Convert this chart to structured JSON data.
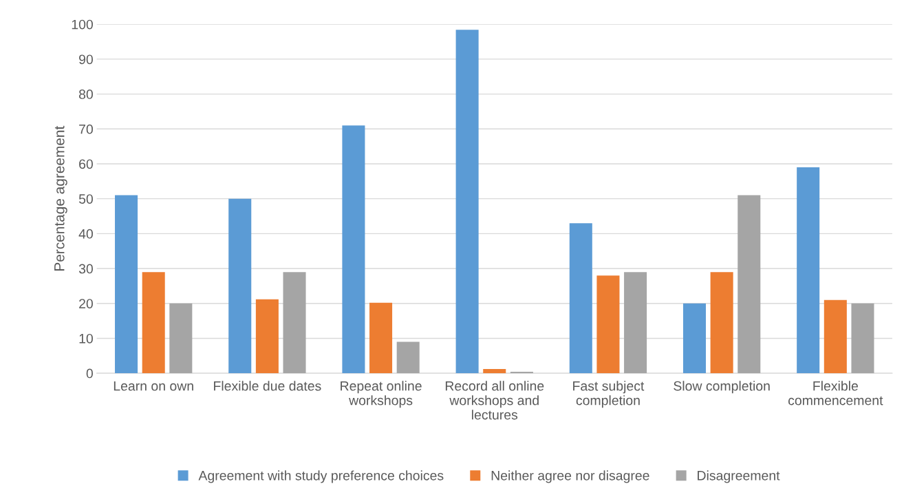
{
  "chart_data": {
    "type": "bar",
    "ylabel": "Percentage agreement",
    "categories": [
      "Learn on own",
      "Flexible due dates",
      "Repeat online workshops",
      "Record all online workshops and lectures",
      "Fast subject completion",
      "Slow completion",
      "Flexible commencement"
    ],
    "series": [
      {
        "name": "Agreement with study preference choices",
        "color": "#5b9bd5",
        "values": [
          51,
          50,
          71,
          98.4,
          43,
          20,
          59
        ]
      },
      {
        "name": "Neither agree nor disagree",
        "color": "#ed7d31",
        "values": [
          29,
          21.2,
          20.2,
          1.2,
          28,
          29,
          21
        ]
      },
      {
        "name": "Disagreement",
        "color": "#a5a5a5",
        "values": [
          20,
          29,
          9,
          0.4,
          29,
          51,
          20
        ]
      }
    ],
    "ylim": [
      0,
      100
    ],
    "yticks": [
      0,
      10,
      20,
      30,
      40,
      50,
      60,
      70,
      80,
      90,
      100
    ],
    "grid": "y",
    "legend": "bottom"
  }
}
